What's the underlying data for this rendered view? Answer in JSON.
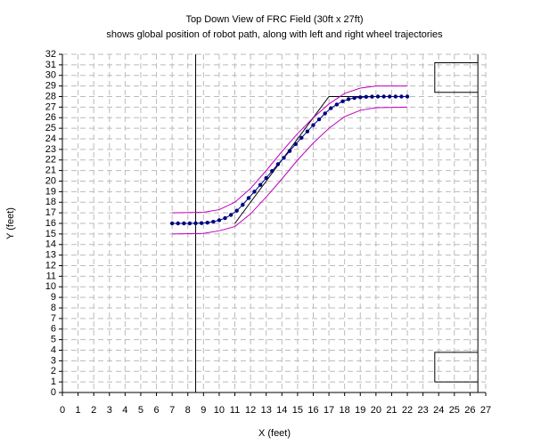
{
  "chart_data": {
    "type": "line",
    "title": "Top Down View of FRC Field (30ft x 27ft)",
    "subtitle": "shows global position of robot path, along with left and right wheel trajectories",
    "x_label": "X (feet)",
    "y_label": "Y (feet)",
    "xlim": [
      0,
      27
    ],
    "ylim": [
      0,
      32
    ],
    "xticks": [
      0,
      1,
      2,
      3,
      4,
      5,
      6,
      7,
      8,
      9,
      10,
      11,
      12,
      13,
      14,
      15,
      16,
      17,
      18,
      19,
      20,
      21,
      22,
      23,
      24,
      25,
      26,
      27
    ],
    "yticks": [
      0,
      1,
      2,
      3,
      4,
      5,
      6,
      7,
      8,
      9,
      10,
      11,
      12,
      13,
      14,
      15,
      16,
      17,
      18,
      19,
      20,
      21,
      22,
      23,
      24,
      25,
      26,
      27,
      28,
      29,
      30,
      31,
      32
    ],
    "grid": true,
    "series": [
      {
        "color": "#000000",
        "markers": false,
        "x": [
          8.5,
          8.5
        ],
        "values": [
          0,
          32
        ]
      },
      {
        "color": "#000000",
        "markers": false,
        "x": [
          26.5,
          26.5
        ],
        "values": [
          0,
          32
        ]
      },
      {
        "color": "#000000",
        "markers": false,
        "x": [
          26.5,
          23.75,
          23.75,
          26.5
        ],
        "values": [
          31.2,
          31.2,
          28.4,
          28.4
        ]
      },
      {
        "color": "#000000",
        "markers": false,
        "x": [
          26.5,
          23.75,
          23.75,
          26.5
        ],
        "values": [
          3.8,
          3.8,
          1.0,
          1.0
        ]
      },
      {
        "color": "#000000",
        "markers": false,
        "x": [
          11,
          17,
          22
        ],
        "values": [
          16,
          28,
          28
        ]
      },
      {
        "color": "#c000c0",
        "markers": false,
        "x": [
          7,
          9,
          10,
          11,
          12,
          13,
          14,
          15,
          16,
          17,
          18,
          19,
          20,
          22
        ],
        "values": [
          17,
          17.05,
          17.3,
          18,
          19.3,
          21,
          22.8,
          24.5,
          26,
          27.3,
          28.3,
          28.8,
          29,
          29
        ]
      },
      {
        "color": "#c000c0",
        "markers": false,
        "x": [
          7,
          9,
          10,
          11,
          12,
          13,
          14,
          15,
          16,
          17,
          18,
          19,
          20,
          22
        ],
        "values": [
          15,
          15.05,
          15.3,
          15.7,
          16.9,
          18.5,
          20.2,
          22,
          23.6,
          25,
          26.1,
          26.7,
          26.95,
          27
        ]
      },
      {
        "color": "#000080",
        "markers": true,
        "x": [
          7,
          7.375,
          7.75,
          8.125,
          8.5,
          8.875,
          9.25,
          9.625,
          10,
          10.375,
          10.75,
          11.125,
          11.5,
          11.875,
          12.25,
          12.625,
          13,
          13.375,
          13.75,
          14.125,
          14.5,
          14.875,
          15.25,
          15.625,
          16,
          16.375,
          16.75,
          17.125,
          17.5,
          17.875,
          18.25,
          18.625,
          19,
          19.375,
          19.75,
          20.125,
          20.5,
          20.875,
          21.25,
          21.625,
          22
        ],
        "values": [
          16,
          16,
          16,
          16,
          16.01,
          16.03,
          16.07,
          16.15,
          16.3,
          16.5,
          16.8,
          17.2,
          17.75,
          18.4,
          19,
          19.65,
          20.3,
          20.95,
          21.6,
          22.2,
          22.85,
          23.5,
          24.1,
          24.7,
          25.3,
          25.85,
          26.4,
          26.9,
          27.25,
          27.55,
          27.75,
          27.87,
          27.93,
          27.97,
          27.99,
          28,
          28,
          28,
          28,
          28,
          28
        ]
      }
    ]
  }
}
